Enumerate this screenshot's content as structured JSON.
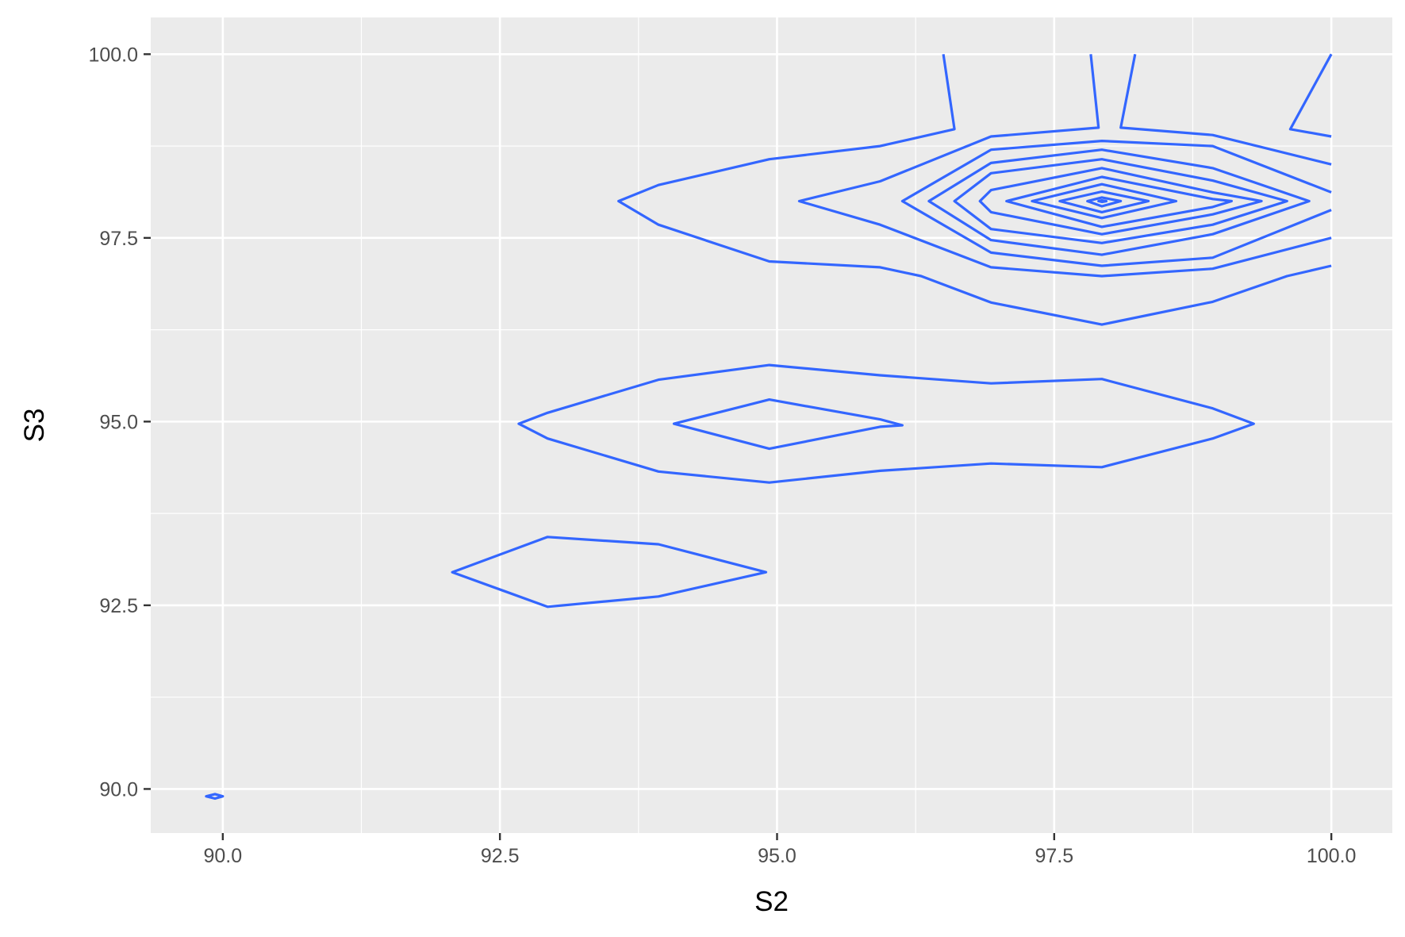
{
  "chart_data": {
    "type": "contour",
    "xlabel": "S2",
    "ylabel": "S3",
    "xlim": [
      89.35,
      100.55
    ],
    "ylim": [
      89.4,
      100.5
    ],
    "x_ticks": [
      90,
      92.5,
      95,
      97.5,
      100
    ],
    "y_ticks": [
      90,
      92.5,
      95,
      97.5,
      100
    ],
    "x_tick_labels": [
      "90.0",
      "92.5",
      "95.0",
      "97.5",
      "100.0"
    ],
    "y_tick_labels": [
      "90.0",
      "92.5",
      "95.0",
      "97.5",
      "100.0"
    ],
    "grid": true,
    "colors": {
      "panel": "#EBEBEB",
      "grid": "#FFFFFF",
      "line": "#3366FF"
    },
    "contours": [
      {
        "closed": true,
        "points": [
          [
            89.85,
            89.9
          ],
          [
            89.93,
            89.93
          ],
          [
            90.0,
            89.9
          ],
          [
            89.93,
            89.87
          ]
        ]
      },
      {
        "closed": true,
        "points": [
          [
            92.07,
            92.95
          ],
          [
            92.93,
            93.43
          ],
          [
            93.93,
            93.33
          ],
          [
            94.9,
            92.95
          ],
          [
            93.93,
            92.62
          ],
          [
            92.93,
            92.48
          ]
        ]
      },
      {
        "closed": true,
        "points": [
          [
            92.67,
            94.97
          ],
          [
            92.93,
            95.12
          ],
          [
            93.93,
            95.57
          ],
          [
            94.93,
            95.77
          ],
          [
            95.93,
            95.63
          ],
          [
            96.93,
            95.52
          ],
          [
            97.93,
            95.58
          ],
          [
            98.93,
            95.18
          ],
          [
            99.3,
            94.97
          ],
          [
            98.93,
            94.77
          ],
          [
            97.93,
            94.38
          ],
          [
            96.93,
            94.43
          ],
          [
            95.93,
            94.33
          ],
          [
            94.93,
            94.17
          ],
          [
            93.93,
            94.32
          ],
          [
            92.93,
            94.77
          ]
        ]
      },
      {
        "closed": true,
        "points": [
          [
            94.07,
            94.97
          ],
          [
            94.93,
            95.3
          ],
          [
            95.93,
            95.03
          ],
          [
            96.13,
            94.95
          ],
          [
            95.93,
            94.93
          ],
          [
            94.93,
            94.63
          ]
        ]
      },
      {
        "closed": false,
        "points": [
          [
            96.5,
            100.0
          ],
          [
            96.6,
            98.98
          ],
          [
            95.93,
            98.75
          ],
          [
            94.93,
            98.57
          ],
          [
            93.93,
            98.22
          ],
          [
            93.57,
            98.0
          ],
          [
            93.93,
            97.68
          ],
          [
            94.93,
            97.18
          ],
          [
            95.93,
            97.1
          ],
          [
            96.3,
            96.98
          ],
          [
            96.93,
            96.62
          ],
          [
            97.93,
            96.32
          ],
          [
            98.93,
            96.63
          ],
          [
            99.6,
            96.98
          ],
          [
            100.0,
            97.12
          ]
        ]
      },
      {
        "closed": false,
        "points": [
          [
            97.83,
            100.0
          ],
          [
            97.9,
            99.0
          ],
          [
            96.93,
            98.88
          ],
          [
            95.93,
            98.27
          ],
          [
            95.2,
            98.0
          ],
          [
            95.93,
            97.68
          ],
          [
            96.93,
            97.1
          ],
          [
            97.93,
            96.98
          ],
          [
            98.93,
            97.08
          ],
          [
            100.0,
            97.5
          ]
        ]
      },
      {
        "closed": false,
        "points": [
          [
            98.23,
            100.0
          ],
          [
            98.1,
            99.0
          ],
          [
            98.93,
            98.9
          ],
          [
            100.0,
            98.5
          ]
        ]
      },
      {
        "closed": false,
        "points": [
          [
            100.0,
            100.0
          ],
          [
            99.63,
            98.98
          ],
          [
            100.0,
            98.88
          ]
        ]
      },
      {
        "closed": false,
        "points": [
          [
            100.0,
            98.12
          ],
          [
            98.93,
            98.75
          ],
          [
            97.93,
            98.82
          ],
          [
            96.93,
            98.7
          ],
          [
            96.13,
            98.0
          ],
          [
            96.93,
            97.3
          ],
          [
            97.93,
            97.12
          ],
          [
            98.93,
            97.23
          ],
          [
            100.0,
            97.88
          ]
        ]
      },
      {
        "closed": true,
        "points": [
          [
            96.37,
            98.0
          ],
          [
            96.93,
            98.52
          ],
          [
            97.93,
            98.7
          ],
          [
            98.93,
            98.45
          ],
          [
            99.8,
            98.0
          ],
          [
            98.93,
            97.55
          ],
          [
            97.93,
            97.27
          ],
          [
            96.93,
            97.47
          ]
        ]
      },
      {
        "closed": true,
        "points": [
          [
            96.6,
            98.0
          ],
          [
            96.93,
            98.38
          ],
          [
            97.93,
            98.57
          ],
          [
            98.93,
            98.28
          ],
          [
            99.6,
            98.0
          ],
          [
            98.93,
            97.68
          ],
          [
            97.93,
            97.43
          ],
          [
            96.93,
            97.62
          ]
        ]
      },
      {
        "closed": true,
        "points": [
          [
            96.83,
            98.0
          ],
          [
            96.93,
            98.15
          ],
          [
            97.93,
            98.45
          ],
          [
            98.93,
            98.12
          ],
          [
            99.37,
            98.0
          ],
          [
            98.93,
            97.82
          ],
          [
            97.93,
            97.55
          ],
          [
            96.93,
            97.85
          ]
        ]
      },
      {
        "closed": true,
        "points": [
          [
            97.07,
            98.0
          ],
          [
            97.93,
            98.33
          ],
          [
            98.93,
            98.03
          ],
          [
            99.1,
            98.0
          ],
          [
            98.93,
            97.92
          ],
          [
            97.93,
            97.65
          ]
        ]
      },
      {
        "closed": true,
        "points": [
          [
            97.3,
            98.0
          ],
          [
            97.93,
            98.23
          ],
          [
            98.6,
            98.0
          ],
          [
            97.93,
            97.77
          ]
        ]
      },
      {
        "closed": true,
        "points": [
          [
            97.55,
            98.0
          ],
          [
            97.93,
            98.13
          ],
          [
            98.35,
            98.0
          ],
          [
            97.93,
            97.85
          ]
        ]
      },
      {
        "closed": true,
        "points": [
          [
            97.8,
            98.0
          ],
          [
            97.93,
            98.05
          ],
          [
            98.1,
            98.0
          ],
          [
            97.93,
            97.93
          ]
        ]
      },
      {
        "closed": true,
        "points": [
          [
            97.9,
            98.0
          ],
          [
            97.93,
            98.01
          ],
          [
            97.97,
            98.0
          ],
          [
            97.93,
            97.99
          ]
        ]
      }
    ]
  }
}
